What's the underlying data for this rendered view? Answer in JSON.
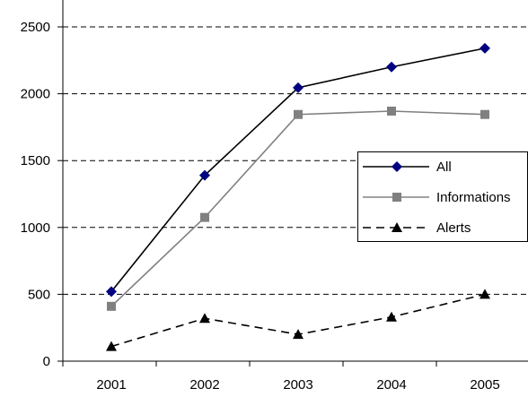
{
  "chart_data": {
    "type": "line",
    "title": "",
    "xlabel": "",
    "ylabel": "",
    "categories": [
      "2001",
      "2002",
      "2003",
      "2004",
      "2005"
    ],
    "ylim": [
      0,
      2500
    ],
    "yticks": [
      0,
      500,
      1000,
      1500,
      2000,
      2500
    ],
    "grid": "horizontal dashed",
    "legend_position": "right",
    "series": [
      {
        "name": "All",
        "values": [
          520,
          1390,
          2045,
          2200,
          2340
        ],
        "color": "#000000",
        "marker_color": "#000080",
        "marker": "diamond",
        "line_style": "solid"
      },
      {
        "name": "Informations",
        "values": [
          410,
          1075,
          1845,
          1870,
          1845
        ],
        "color": "#808080",
        "marker_color": "#808080",
        "marker": "square",
        "line_style": "solid"
      },
      {
        "name": "Alerts",
        "values": [
          110,
          320,
          200,
          330,
          500
        ],
        "color": "#000000",
        "marker_color": "#000000",
        "marker": "triangle",
        "line_style": "dashed"
      }
    ]
  }
}
